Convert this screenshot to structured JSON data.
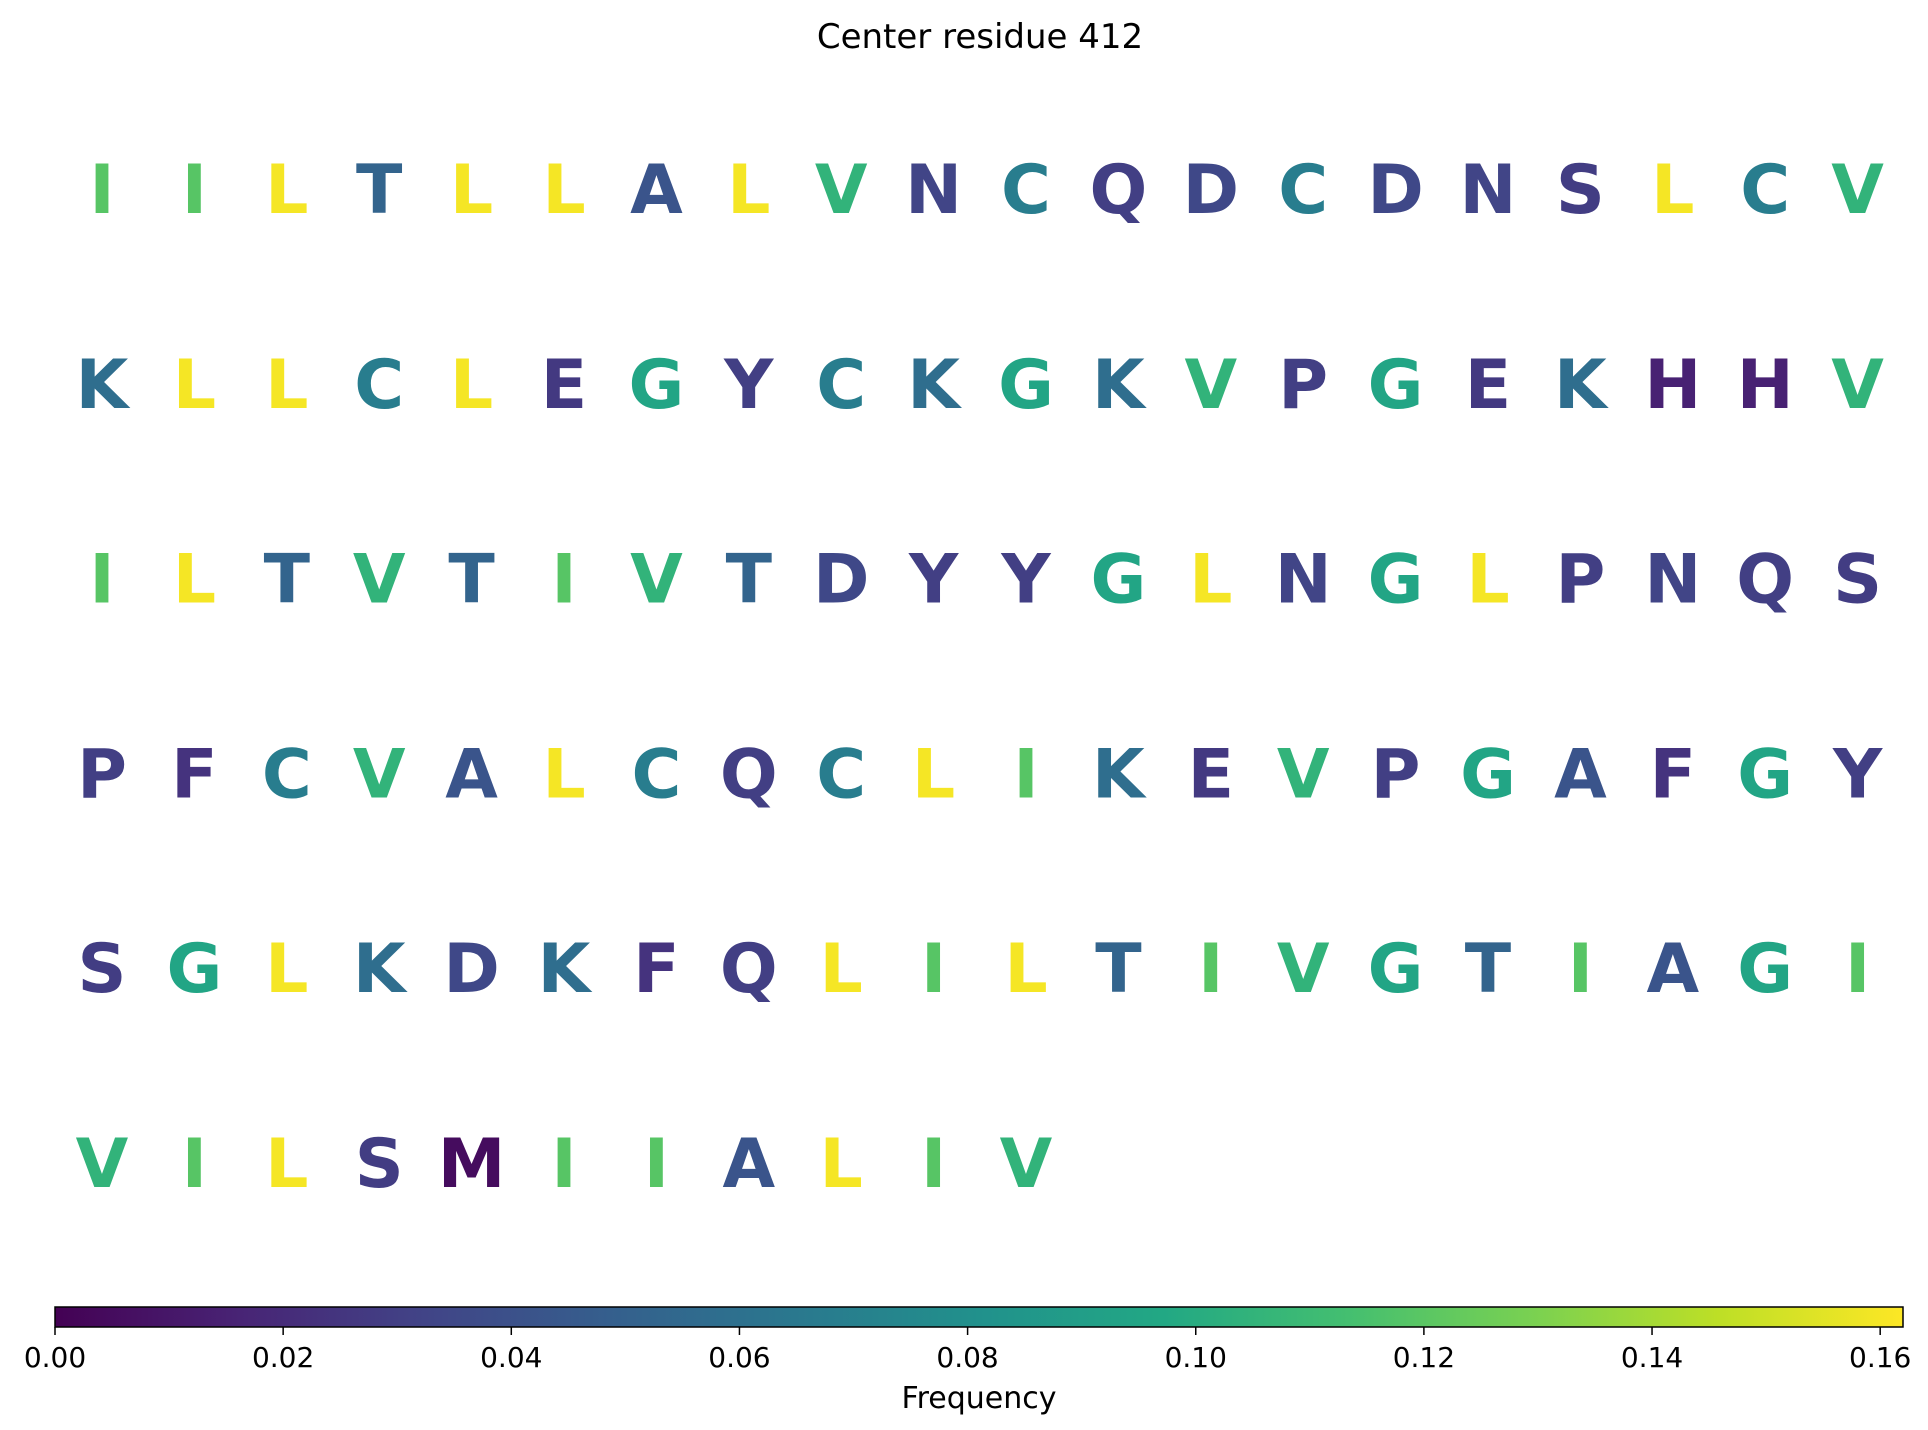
{
  "chart_data": {
    "type": "heatmap",
    "title": "Center residue 412",
    "colormap": "viridis",
    "colorbar": {
      "label": "Frequency",
      "range": [
        0,
        0.162
      ],
      "ticks": [
        "0.00",
        "0.02",
        "0.04",
        "0.06",
        "0.08",
        "0.10",
        "0.12",
        "0.14",
        "0.16"
      ],
      "tick_values": [
        0,
        0.02,
        0.04,
        0.06,
        0.08,
        0.1,
        0.12,
        0.14,
        0.16
      ],
      "placement": "bottom"
    },
    "frequencies": {
      "L": 0.16,
      "I": 0.119,
      "V": 0.105,
      "G": 0.095,
      "C": 0.068,
      "K": 0.058,
      "T": 0.052,
      "A": 0.042,
      "D": 0.035,
      "N": 0.033,
      "Q": 0.03,
      "P": 0.03,
      "Y": 0.03,
      "S": 0.029,
      "E": 0.027,
      "F": 0.024,
      "H": 0.015,
      "M": 0.005
    },
    "rows": [
      [
        "I",
        "I",
        "L",
        "T",
        "L",
        "L",
        "A",
        "L",
        "V",
        "N",
        "C",
        "Q",
        "D",
        "C",
        "D",
        "N",
        "S",
        "L",
        "C",
        "V"
      ],
      [
        "K",
        "L",
        "L",
        "C",
        "L",
        "E",
        "G",
        "Y",
        "C",
        "K",
        "G",
        "K",
        "V",
        "P",
        "G",
        "E",
        "K",
        "H",
        "H",
        "V"
      ],
      [
        "I",
        "L",
        "T",
        "V",
        "T",
        "I",
        "V",
        "T",
        "D",
        "Y",
        "Y",
        "G",
        "L",
        "N",
        "G",
        "L",
        "P",
        "N",
        "Q",
        "S"
      ],
      [
        "P",
        "F",
        "C",
        "V",
        "A",
        "L",
        "C",
        "Q",
        "C",
        "L",
        "I",
        "K",
        "E",
        "V",
        "P",
        "G",
        "A",
        "F",
        "G",
        "Y"
      ],
      [
        "S",
        "G",
        "L",
        "K",
        "D",
        "K",
        "F",
        "Q",
        "L",
        "I",
        "L",
        "T",
        "I",
        "V",
        "G",
        "T",
        "I",
        "A",
        "G",
        "I"
      ],
      [
        "V",
        "I",
        "L",
        "S",
        "M",
        "I",
        "I",
        "A",
        "L",
        "I",
        "V"
      ]
    ]
  }
}
